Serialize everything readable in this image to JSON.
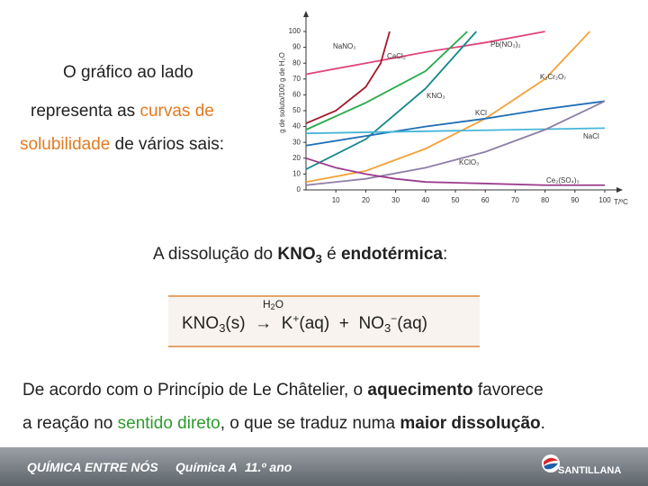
{
  "intro": {
    "line1": "O gráfico ao lado",
    "line2": [
      "representa as",
      "curvas de"
    ],
    "line3": [
      "solubilidade",
      "de vários sais:"
    ]
  },
  "statement": [
    "A dissolução do",
    "KNO",
    "3",
    "é",
    "endotérmica",
    ":"
  ],
  "equation": {
    "solvent": [
      "H",
      "2",
      "O"
    ],
    "parts": [
      "KNO",
      "3",
      "(s)",
      "→",
      "K",
      "+",
      "(aq)",
      "+",
      "NO",
      "3",
      "−",
      "(aq)"
    ]
  },
  "conclusion": {
    "line1": [
      "De acordo com o Princípio de Le Châtelier, o",
      "aquecimento",
      "favorece"
    ],
    "line2": [
      "a reação no",
      "sentido direto",
      ",",
      "o que se traduz numa",
      "maior dissolução",
      "."
    ]
  },
  "footer": {
    "brand": "QUÍMICA ENTRE NÓS",
    "course": "Química A",
    "grade": "11.º ano",
    "publisher": "SANTILLANA"
  },
  "chart_data": {
    "type": "line",
    "ylabel": "g de soluto/100 g de H₂O",
    "xlabel": "T/ºC",
    "xlim": [
      0,
      100
    ],
    "ylim": [
      0,
      100
    ],
    "xticks": [
      10,
      20,
      30,
      40,
      50,
      60,
      70,
      80,
      90,
      100
    ],
    "yticks": [
      0,
      10,
      20,
      30,
      40,
      50,
      60,
      70,
      80,
      90,
      100
    ],
    "series": [
      {
        "name": "NaNO₃",
        "color": "#e0457b",
        "x": [
          0,
          20,
          40,
          60,
          80
        ],
        "values": [
          73,
          80,
          87,
          93,
          100
        ]
      },
      {
        "name": "CaCl₂",
        "color": "#a3192e",
        "x": [
          0,
          10,
          20,
          25,
          28
        ],
        "values": [
          42,
          50,
          65,
          80,
          100
        ]
      },
      {
        "name": "Pb(NO₃)₂",
        "color": "#2aa84a",
        "x": [
          0,
          20,
          40,
          54
        ],
        "values": [
          38,
          55,
          75,
          100
        ]
      },
      {
        "name": "K₂Cr₂O₇",
        "color": "#f4a23a",
        "x": [
          0,
          20,
          40,
          60,
          80,
          95
        ],
        "values": [
          5,
          12,
          26,
          45,
          70,
          100
        ]
      },
      {
        "name": "KNO₃",
        "color": "#13878a",
        "x": [
          0,
          20,
          40,
          57
        ],
        "values": [
          13,
          32,
          64,
          100
        ]
      },
      {
        "name": "KCl",
        "color": "#1f6fb5",
        "x": [
          0,
          20,
          40,
          60,
          80,
          100
        ],
        "values": [
          28,
          34,
          40,
          45,
          51,
          56
        ]
      },
      {
        "name": "NaCl",
        "color": "#48b6d8",
        "x": [
          0,
          100
        ],
        "values": [
          35.7,
          39
        ]
      },
      {
        "name": "KClO₃",
        "color": "#8f7fa8",
        "x": [
          0,
          20,
          40,
          60,
          80,
          100
        ],
        "values": [
          3,
          7,
          14,
          24,
          38,
          56
        ]
      },
      {
        "name": "Ce₂(SO₄)₃",
        "color": "#9c3b8c",
        "x": [
          0,
          10,
          20,
          30,
          40,
          60,
          80,
          100
        ],
        "values": [
          20,
          14,
          10,
          7,
          5,
          4,
          3,
          3
        ]
      }
    ]
  }
}
